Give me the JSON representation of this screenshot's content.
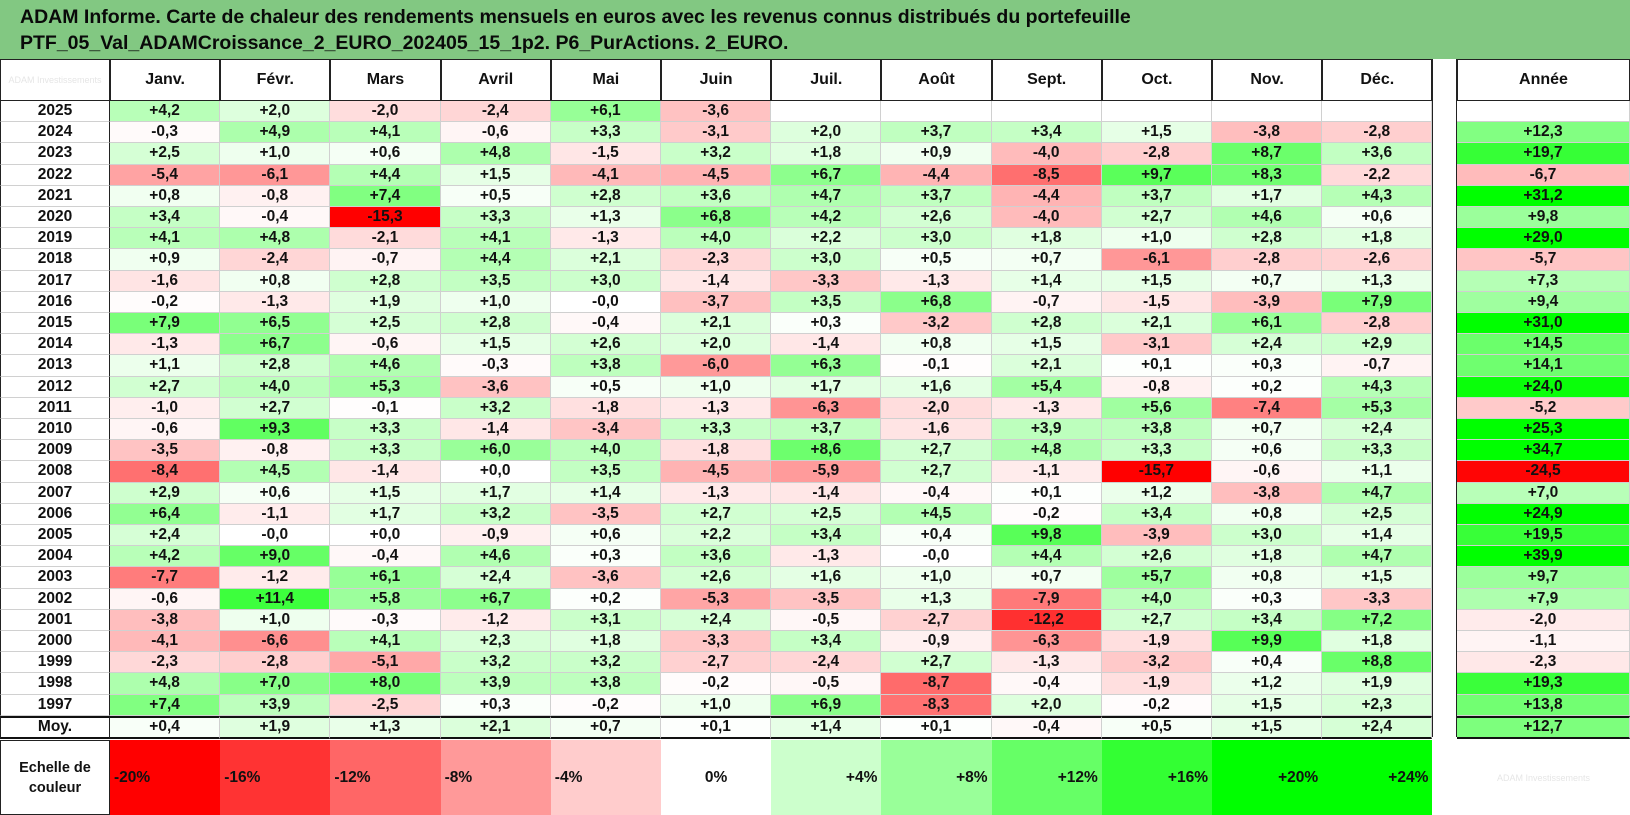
{
  "title_line1": "ADAM Informe. Carte de chaleur des rendements mensuels en euros avec les revenus connus distribués du portefeuille",
  "title_line2": "PTF_05_Val_ADAMCroissance_2_EURO_202405_15_1p2. P6_PurActions. 2_EURO.",
  "watermark": "ADAM Investissements",
  "months": [
    "Janv.",
    "Févr.",
    "Mars",
    "Avril",
    "Mai",
    "Juin",
    "Juil.",
    "Août",
    "Sept.",
    "Oct.",
    "Nov.",
    "Déc."
  ],
  "annual_header": "Année",
  "avg_label": "Moy.",
  "scale_label_line1": "Echelle de",
  "scale_label_line2": "couleur",
  "scale_steps": [
    "-20%",
    "-16%",
    "-12%",
    "-8%",
    "-4%",
    "0%",
    "+4%",
    "+8%",
    "+12%",
    "+16%",
    "+20%",
    "+24%"
  ],
  "colors": {
    "header_bg": "#82c882",
    "negative_max": "#ff0000",
    "positive_max": "#00ff00",
    "neutral": "#ffffff"
  },
  "chart_data": {
    "type": "heatmap",
    "title": "ADAM Informe. Carte de chaleur des rendements mensuels en euros avec les revenus connus distribués du portefeuille",
    "unit": "%",
    "columns": [
      "Janv.",
      "Févr.",
      "Mars",
      "Avril",
      "Mai",
      "Juin",
      "Juil.",
      "Août",
      "Sept.",
      "Oct.",
      "Nov.",
      "Déc.",
      "Année"
    ],
    "rows": [
      {
        "year": "2025",
        "values": [
          "+4,2",
          "+2,0",
          "-2,0",
          "-2,4",
          "+6,1",
          "-3,6",
          "",
          "",
          "",
          "",
          "",
          ""
        ],
        "annual": ""
      },
      {
        "year": "2024",
        "values": [
          "-0,3",
          "+4,9",
          "+4,1",
          "-0,6",
          "+3,3",
          "-3,1",
          "+2,0",
          "+3,7",
          "+3,4",
          "+1,5",
          "-3,8",
          "-2,8"
        ],
        "annual": "+12,3"
      },
      {
        "year": "2023",
        "values": [
          "+2,5",
          "+1,0",
          "+0,6",
          "+4,8",
          "-1,5",
          "+3,2",
          "+1,8",
          "+0,9",
          "-4,0",
          "-2,8",
          "+8,7",
          "+3,6"
        ],
        "annual": "+19,7"
      },
      {
        "year": "2022",
        "values": [
          "-5,4",
          "-6,1",
          "+4,4",
          "+1,5",
          "-4,1",
          "-4,5",
          "+6,7",
          "-4,4",
          "-8,5",
          "+9,7",
          "+8,3",
          "-2,2"
        ],
        "annual": "-6,7"
      },
      {
        "year": "2021",
        "values": [
          "+0,8",
          "-0,8",
          "+7,4",
          "+0,5",
          "+2,8",
          "+3,6",
          "+4,7",
          "+3,7",
          "-4,4",
          "+3,7",
          "+1,7",
          "+4,3"
        ],
        "annual": "+31,2"
      },
      {
        "year": "2020",
        "values": [
          "+3,4",
          "-0,4",
          "-15,3",
          "+3,3",
          "+1,3",
          "+6,8",
          "+4,2",
          "+2,6",
          "-4,0",
          "+2,7",
          "+4,6",
          "+0,6"
        ],
        "annual": "+9,8"
      },
      {
        "year": "2019",
        "values": [
          "+4,1",
          "+4,8",
          "-2,1",
          "+4,1",
          "-1,3",
          "+4,0",
          "+2,2",
          "+3,0",
          "+1,8",
          "+1,0",
          "+2,8",
          "+1,8"
        ],
        "annual": "+29,0"
      },
      {
        "year": "2018",
        "values": [
          "+0,9",
          "-2,4",
          "-0,7",
          "+4,4",
          "+2,1",
          "-2,3",
          "+3,0",
          "+0,5",
          "+0,7",
          "-6,1",
          "-2,8",
          "-2,6"
        ],
        "annual": "-5,7"
      },
      {
        "year": "2017",
        "values": [
          "-1,6",
          "+0,8",
          "+2,8",
          "+3,5",
          "+3,0",
          "-1,4",
          "-3,3",
          "-1,3",
          "+1,4",
          "+1,5",
          "+0,7",
          "+1,3"
        ],
        "annual": "+7,3"
      },
      {
        "year": "2016",
        "values": [
          "-0,2",
          "-1,3",
          "+1,9",
          "+1,0",
          "-0,0",
          "-3,7",
          "+3,5",
          "+6,8",
          "-0,7",
          "-1,5",
          "-3,9",
          "+7,9"
        ],
        "annual": "+9,4"
      },
      {
        "year": "2015",
        "values": [
          "+7,9",
          "+6,5",
          "+2,5",
          "+2,8",
          "-0,4",
          "+2,1",
          "+0,3",
          "-3,2",
          "+2,8",
          "+2,1",
          "+6,1",
          "-2,8"
        ],
        "annual": "+31,0"
      },
      {
        "year": "2014",
        "values": [
          "-1,3",
          "+6,7",
          "-0,6",
          "+1,5",
          "+2,6",
          "+2,0",
          "-1,4",
          "+0,8",
          "+1,5",
          "-3,1",
          "+2,4",
          "+2,9"
        ],
        "annual": "+14,5"
      },
      {
        "year": "2013",
        "values": [
          "+1,1",
          "+2,8",
          "+4,6",
          "-0,3",
          "+3,8",
          "-6,0",
          "+6,3",
          "-0,1",
          "+2,1",
          "+0,1",
          "+0,3",
          "-0,7"
        ],
        "annual": "+14,1"
      },
      {
        "year": "2012",
        "values": [
          "+2,7",
          "+4,0",
          "+5,3",
          "-3,6",
          "+0,5",
          "+1,0",
          "+1,7",
          "+1,6",
          "+5,4",
          "-0,8",
          "+0,2",
          "+4,3"
        ],
        "annual": "+24,0"
      },
      {
        "year": "2011",
        "values": [
          "-1,0",
          "+2,7",
          "-0,1",
          "+3,2",
          "-1,8",
          "-1,3",
          "-6,3",
          "-2,0",
          "-1,3",
          "+5,6",
          "-7,4",
          "+5,3"
        ],
        "annual": "-5,2"
      },
      {
        "year": "2010",
        "values": [
          "-0,6",
          "+9,3",
          "+3,3",
          "-1,4",
          "-3,4",
          "+3,3",
          "+3,7",
          "-1,6",
          "+3,9",
          "+3,8",
          "+0,7",
          "+2,4"
        ],
        "annual": "+25,3"
      },
      {
        "year": "2009",
        "values": [
          "-3,5",
          "-0,8",
          "+3,3",
          "+6,0",
          "+4,0",
          "-1,8",
          "+8,6",
          "+2,7",
          "+4,8",
          "+3,3",
          "+0,6",
          "+3,3"
        ],
        "annual": "+34,7"
      },
      {
        "year": "2008",
        "values": [
          "-8,4",
          "+4,5",
          "-1,4",
          "+0,0",
          "+3,5",
          "-4,5",
          "-5,9",
          "+2,7",
          "-1,1",
          "-15,7",
          "-0,6",
          "+1,1"
        ],
        "annual": "-24,5"
      },
      {
        "year": "2007",
        "values": [
          "+2,9",
          "+0,6",
          "+1,5",
          "+1,7",
          "+1,4",
          "-1,3",
          "-1,4",
          "-0,4",
          "+0,1",
          "+1,2",
          "-3,8",
          "+4,7"
        ],
        "annual": "+7,0"
      },
      {
        "year": "2006",
        "values": [
          "+6,4",
          "-1,1",
          "+1,7",
          "+3,2",
          "-3,5",
          "+2,7",
          "+2,5",
          "+4,5",
          "-0,2",
          "+3,4",
          "+0,8",
          "+2,5"
        ],
        "annual": "+24,9"
      },
      {
        "year": "2005",
        "values": [
          "+2,4",
          "-0,0",
          "+0,0",
          "-0,9",
          "+0,6",
          "+2,2",
          "+3,4",
          "+0,4",
          "+9,8",
          "-3,9",
          "+3,0",
          "+1,4"
        ],
        "annual": "+19,5"
      },
      {
        "year": "2004",
        "values": [
          "+4,2",
          "+9,0",
          "-0,4",
          "+4,6",
          "+0,3",
          "+3,6",
          "-1,3",
          "-0,0",
          "+4,4",
          "+2,6",
          "+1,8",
          "+4,7"
        ],
        "annual": "+39,9"
      },
      {
        "year": "2003",
        "values": [
          "-7,7",
          "-1,2",
          "+6,1",
          "+2,4",
          "-3,6",
          "+2,6",
          "+1,6",
          "+1,0",
          "+0,7",
          "+5,7",
          "+0,8",
          "+1,5"
        ],
        "annual": "+9,7"
      },
      {
        "year": "2002",
        "values": [
          "-0,6",
          "+11,4",
          "+5,8",
          "+6,7",
          "+0,2",
          "-5,3",
          "-3,5",
          "+1,3",
          "-7,9",
          "+4,0",
          "+0,3",
          "-3,3"
        ],
        "annual": "+7,9"
      },
      {
        "year": "2001",
        "values": [
          "-3,8",
          "+1,0",
          "-0,3",
          "-1,2",
          "+3,1",
          "+2,4",
          "-0,5",
          "-2,7",
          "-12,2",
          "+2,7",
          "+3,4",
          "+7,2"
        ],
        "annual": "-2,0"
      },
      {
        "year": "2000",
        "values": [
          "-4,1",
          "-6,6",
          "+4,1",
          "+2,3",
          "+1,8",
          "-3,3",
          "+3,4",
          "-0,9",
          "-6,3",
          "-1,9",
          "+9,9",
          "+1,8"
        ],
        "annual": "-1,1"
      },
      {
        "year": "1999",
        "values": [
          "-2,3",
          "-2,8",
          "-5,1",
          "+3,2",
          "+3,2",
          "-2,7",
          "-2,4",
          "+2,7",
          "-1,3",
          "-3,2",
          "+0,4",
          "+8,8"
        ],
        "annual": "-2,3"
      },
      {
        "year": "1998",
        "values": [
          "+4,8",
          "+7,0",
          "+8,0",
          "+3,9",
          "+3,8",
          "-0,2",
          "-0,5",
          "-8,7",
          "-0,4",
          "-1,9",
          "+1,2",
          "+1,9"
        ],
        "annual": "+19,3"
      },
      {
        "year": "1997",
        "values": [
          "+7,4",
          "+3,9",
          "-2,5",
          "+0,3",
          "-0,2",
          "+1,0",
          "+6,9",
          "-8,3",
          "+2,0",
          "-0,2",
          "+1,5",
          "+2,3"
        ],
        "annual": "+13,8"
      }
    ],
    "average": {
      "values": [
        "+0,4",
        "+1,9",
        "+1,3",
        "+2,1",
        "+0,7",
        "+0,1",
        "+1,4",
        "+0,1",
        "-0,4",
        "+0,5",
        "+1,5",
        "+2,4"
      ],
      "annual": "+12,7"
    },
    "color_scale": {
      "min": -20,
      "max": 24,
      "low_color": "#ff0000",
      "mid_color": "#ffffff",
      "high_color": "#00ff00"
    }
  }
}
